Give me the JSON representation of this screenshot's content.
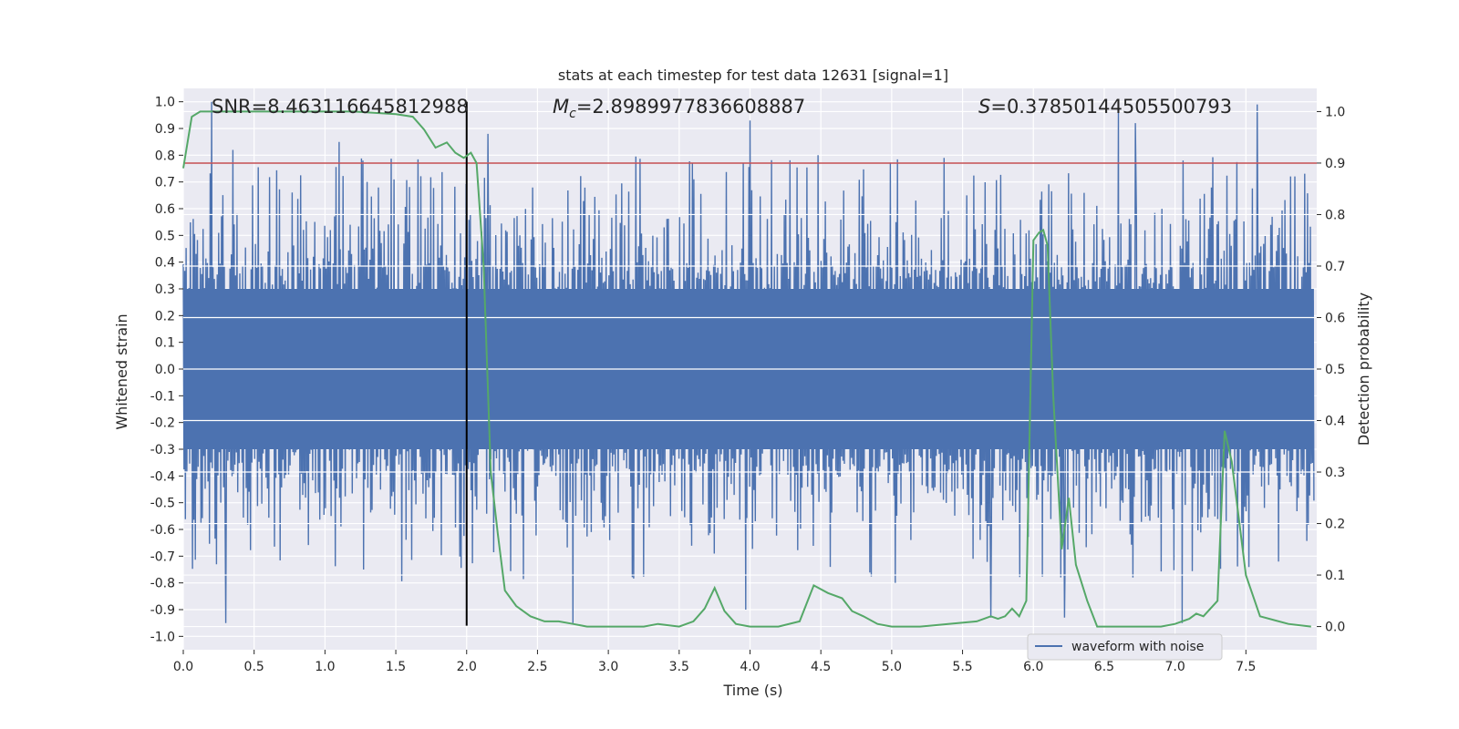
{
  "chart_data": {
    "type": "line",
    "title": "stats at each timestep for test data 12631 [signal=1]",
    "xlabel": "Time (s)",
    "ylabel_left": "Whitened strain",
    "ylabel_right": "Detection probability",
    "xlim": [
      0,
      8
    ],
    "ylim_left": [
      -1.05,
      1.05
    ],
    "ylim_right": [
      -0.045,
      1.045
    ],
    "x_ticks": [
      0.0,
      0.5,
      1.0,
      1.5,
      2.0,
      2.5,
      3.0,
      3.5,
      4.0,
      4.5,
      5.0,
      5.5,
      6.0,
      6.5,
      7.0,
      7.5
    ],
    "x_tick_labels": [
      "0.0",
      "0.5",
      "1.0",
      "1.5",
      "2.0",
      "2.5",
      "3.0",
      "3.5",
      "4.0",
      "4.5",
      "5.0",
      "5.5",
      "6.0",
      "6.5",
      "7.0",
      "7.5"
    ],
    "y_left_ticks": [
      1.0,
      0.9,
      0.8,
      0.7,
      0.6,
      0.5,
      0.4,
      0.3,
      0.2,
      0.1,
      0.0,
      -0.1,
      -0.2,
      -0.3,
      -0.4,
      -0.5,
      -0.6,
      -0.7,
      -0.8,
      -0.9,
      -1.0
    ],
    "y_left_tick_labels": [
      "1.0",
      "0.9",
      "0.8",
      "0.7",
      "0.6",
      "0.5",
      "0.4",
      "0.3",
      "0.2",
      "0.1",
      "0.0",
      "-0.1",
      "-0.2",
      "-0.3",
      "-0.4",
      "-0.5",
      "-0.6",
      "-0.7",
      "-0.8",
      "-0.9",
      "-1.0"
    ],
    "y_right_ticks": [
      1.0,
      0.9,
      0.8,
      0.7,
      0.6,
      0.5,
      0.4,
      0.3,
      0.2,
      0.1,
      0.0
    ],
    "y_right_tick_labels": [
      "1.0",
      "0.9",
      "0.8",
      "0.7",
      "0.6",
      "0.5",
      "0.4",
      "0.3",
      "0.2",
      "0.1",
      "0.0"
    ],
    "annotations": {
      "snr": "SNR=8.463116645812988",
      "mc_symbol": "M",
      "mc_subscript": "c",
      "mc_value": "=2.8989977836608887",
      "s_symbol": "S",
      "s_value": "=0.37850144505500793"
    },
    "threshold_line": {
      "axis": "right",
      "y": 0.9,
      "color": "#c44e52"
    },
    "marker_line": {
      "x": 2.0,
      "y_range_left": [
        -0.96,
        1.0
      ],
      "color": "#000000"
    },
    "legend": {
      "position": "lower-right",
      "entries": [
        {
          "label": "waveform with noise",
          "color": "#4c72b0"
        }
      ]
    },
    "series": [
      {
        "name": "waveform with noise",
        "axis": "left",
        "color": "#4c72b0",
        "kind": "noise-waveform",
        "core_amplitude": 0.3,
        "typical_peak": 0.6,
        "samples_shown": "approx. 2000 per 8 s",
        "spikes": [
          {
            "x": 0.2,
            "y": 1.0
          },
          {
            "x": 0.35,
            "y": 0.82
          },
          {
            "x": 1.1,
            "y": 0.85
          },
          {
            "x": 2.15,
            "y": 0.88
          },
          {
            "x": 4.0,
            "y": 0.93
          },
          {
            "x": 4.48,
            "y": 0.8
          },
          {
            "x": 6.6,
            "y": 0.97
          },
          {
            "x": 6.72,
            "y": 0.92
          },
          {
            "x": 7.58,
            "y": 0.99
          },
          {
            "x": 0.3,
            "y": -0.95
          },
          {
            "x": 2.75,
            "y": -0.95
          },
          {
            "x": 3.97,
            "y": -0.9
          },
          {
            "x": 6.22,
            "y": -0.93
          },
          {
            "x": 7.05,
            "y": -0.95
          },
          {
            "x": 5.7,
            "y": -0.93
          }
        ]
      },
      {
        "name": "detection probability",
        "axis": "right",
        "color": "#55a868",
        "x": [
          0.0,
          0.06,
          0.12,
          0.3,
          0.6,
          0.9,
          1.2,
          1.5,
          1.62,
          1.7,
          1.78,
          1.86,
          1.92,
          1.98,
          2.03,
          2.07,
          2.12,
          2.17,
          2.22,
          2.27,
          2.35,
          2.45,
          2.55,
          2.65,
          2.75,
          2.85,
          3.0,
          3.15,
          3.25,
          3.35,
          3.5,
          3.6,
          3.68,
          3.75,
          3.82,
          3.9,
          4.0,
          4.2,
          4.35,
          4.45,
          4.55,
          4.65,
          4.72,
          4.8,
          4.9,
          5.0,
          5.2,
          5.4,
          5.6,
          5.7,
          5.75,
          5.8,
          5.85,
          5.9,
          5.95,
          6.0,
          6.04,
          6.07,
          6.1,
          6.14,
          6.2,
          6.25,
          6.3,
          6.38,
          6.45,
          6.55,
          6.7,
          6.9,
          7.0,
          7.1,
          7.15,
          7.2,
          7.3,
          7.35,
          7.4,
          7.5,
          7.6,
          7.8,
          7.96
        ],
        "y": [
          0.89,
          0.99,
          1.0,
          1.0,
          1.0,
          1.0,
          1.0,
          0.995,
          0.99,
          0.965,
          0.93,
          0.94,
          0.92,
          0.91,
          0.92,
          0.9,
          0.7,
          0.3,
          0.18,
          0.07,
          0.04,
          0.02,
          0.01,
          0.01,
          0.005,
          0.0,
          0.0,
          0.0,
          0.0,
          0.005,
          0.0,
          0.01,
          0.035,
          0.075,
          0.03,
          0.005,
          0.0,
          0.0,
          0.01,
          0.08,
          0.065,
          0.055,
          0.03,
          0.02,
          0.005,
          0.0,
          0.0,
          0.005,
          0.01,
          0.02,
          0.015,
          0.02,
          0.035,
          0.02,
          0.05,
          0.75,
          0.765,
          0.77,
          0.74,
          0.45,
          0.15,
          0.25,
          0.12,
          0.05,
          0.0,
          0.0,
          0.0,
          0.0,
          0.005,
          0.015,
          0.025,
          0.02,
          0.05,
          0.38,
          0.32,
          0.1,
          0.02,
          0.005,
          0.0
        ]
      }
    ]
  }
}
